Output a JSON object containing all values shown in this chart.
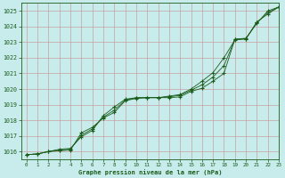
{
  "title": "Graphe pression niveau de la mer (hPa)",
  "bg_color": "#c8ecec",
  "grid_color": "#c8a0a0",
  "line_color": "#1a5c1a",
  "marker_color": "#1a5c1a",
  "xlim": [
    -0.5,
    23
  ],
  "ylim": [
    1015.5,
    1025.5
  ],
  "yticks": [
    1016,
    1017,
    1018,
    1019,
    1020,
    1021,
    1022,
    1023,
    1024,
    1025
  ],
  "xticks": [
    0,
    1,
    2,
    3,
    4,
    5,
    6,
    7,
    8,
    9,
    10,
    11,
    12,
    13,
    14,
    15,
    16,
    17,
    18,
    19,
    20,
    21,
    22,
    23
  ],
  "series": [
    [
      1015.8,
      1015.85,
      1016.0,
      1016.05,
      1016.1,
      1017.2,
      1017.55,
      1018.15,
      1018.5,
      1019.25,
      1019.4,
      1019.45,
      1019.45,
      1019.45,
      1019.5,
      1019.85,
      1020.05,
      1020.5,
      1021.0,
      1023.2,
      1023.25,
      1024.2,
      1025.0,
      1025.25
    ],
    [
      1015.8,
      1015.85,
      1016.0,
      1016.15,
      1016.2,
      1016.95,
      1017.35,
      1018.3,
      1018.85,
      1019.35,
      1019.45,
      1019.45,
      1019.45,
      1019.55,
      1019.65,
      1020.0,
      1020.5,
      1021.05,
      1022.0,
      1023.15,
      1023.2,
      1024.3,
      1024.8,
      1025.25
    ],
    [
      1015.8,
      1015.85,
      1016.0,
      1016.1,
      1016.15,
      1017.05,
      1017.45,
      1018.2,
      1018.65,
      1019.3,
      1019.43,
      1019.45,
      1019.45,
      1019.5,
      1019.6,
      1019.92,
      1020.27,
      1020.77,
      1021.5,
      1023.17,
      1023.22,
      1024.25,
      1024.9,
      1025.25
    ]
  ]
}
